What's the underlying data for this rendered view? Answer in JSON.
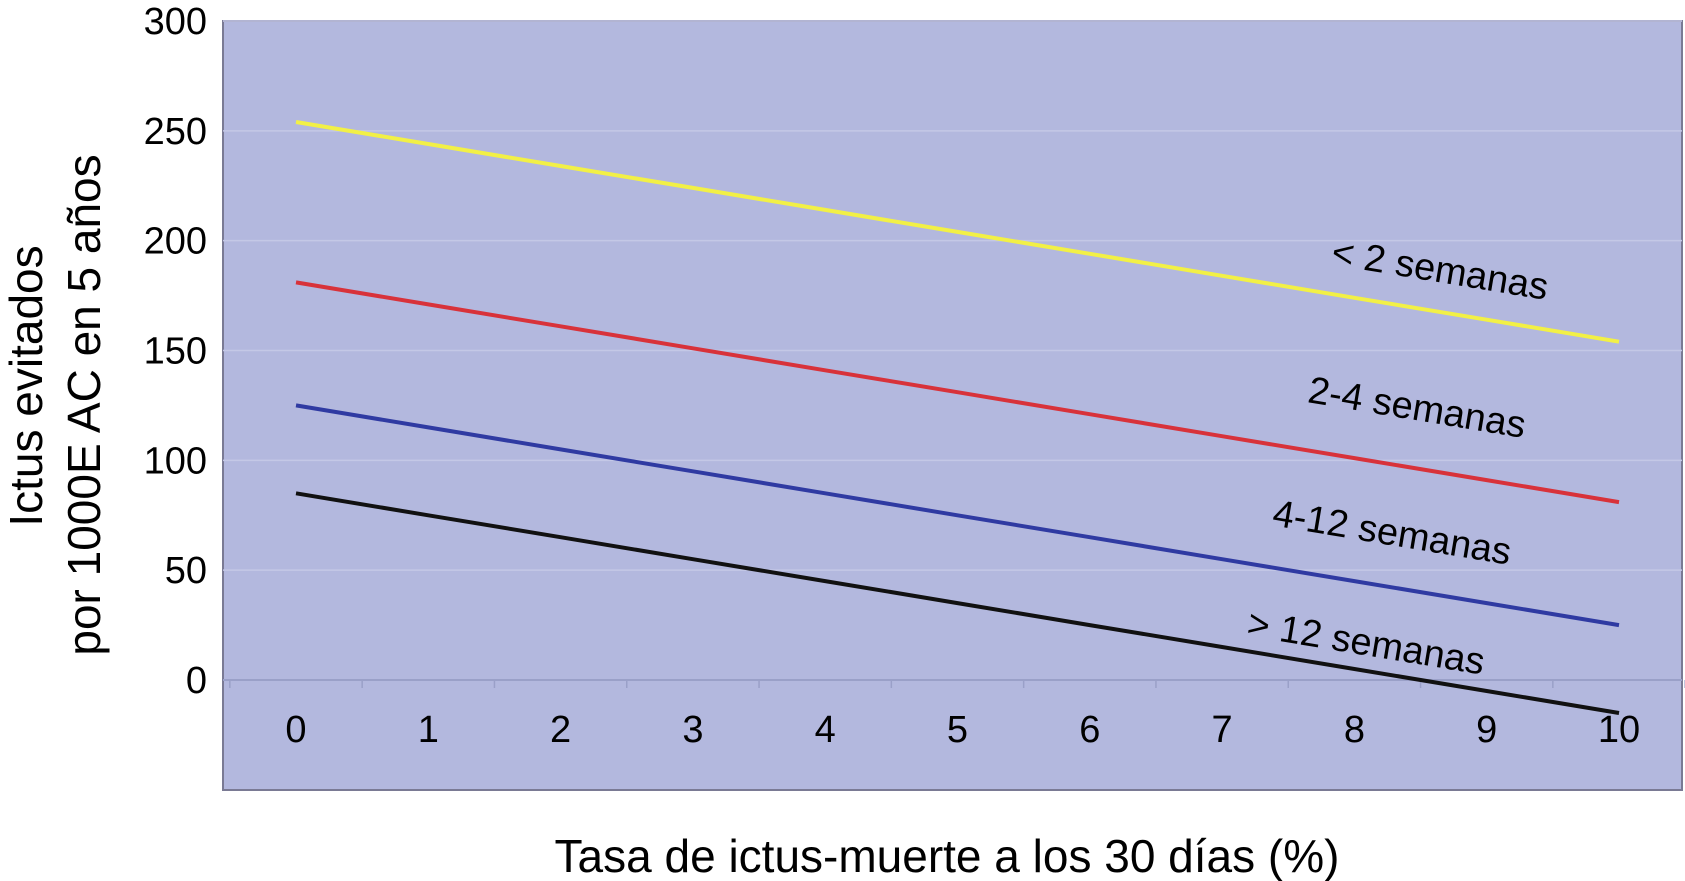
{
  "chart_data": {
    "type": "line",
    "title": "",
    "xlabel": "Tasa de ictus-muerte a los 30 días (%)",
    "ylabel_lines": [
      "Ictus evitados",
      "por 1000E AC en 5 años"
    ],
    "x": [
      0,
      1,
      2,
      3,
      4,
      5,
      6,
      7,
      8,
      9,
      10
    ],
    "x_tick_labels": [
      "0",
      "1",
      "2",
      "3",
      "4",
      "5",
      "6",
      "7",
      "8",
      "9",
      "10"
    ],
    "y_tick_labels": [
      "300",
      "250",
      "200",
      "150",
      "100",
      "50",
      "0"
    ],
    "y_ticks": [
      300,
      250,
      200,
      150,
      100,
      50,
      0
    ],
    "ylim": [
      -50,
      300
    ],
    "xlim": [
      -0.55,
      10.55
    ],
    "grid": true,
    "legend": "inline labels",
    "background_color": "#b3b8de",
    "grid_color": "#c4c8e6",
    "series": [
      {
        "name": "< 2 semanas",
        "color": "#f2f046",
        "values": [
          254,
          244,
          234,
          224,
          214,
          204,
          194,
          184,
          174,
          164,
          154
        ]
      },
      {
        "name": "2-4 semanas",
        "color": "#d8323a",
        "values": [
          181,
          171,
          161,
          151,
          141,
          131,
          121,
          111,
          101,
          91,
          81
        ]
      },
      {
        "name": "4-12 semanas",
        "color": "#2f3aa2",
        "values": [
          125,
          115,
          105,
          95,
          85,
          75,
          65,
          55,
          45,
          35,
          25
        ]
      },
      {
        "name": "> 12 semanas",
        "color": "#111111",
        "values": [
          85,
          75,
          65,
          55,
          45,
          35,
          25,
          15,
          5,
          -5,
          -15
        ]
      }
    ]
  }
}
